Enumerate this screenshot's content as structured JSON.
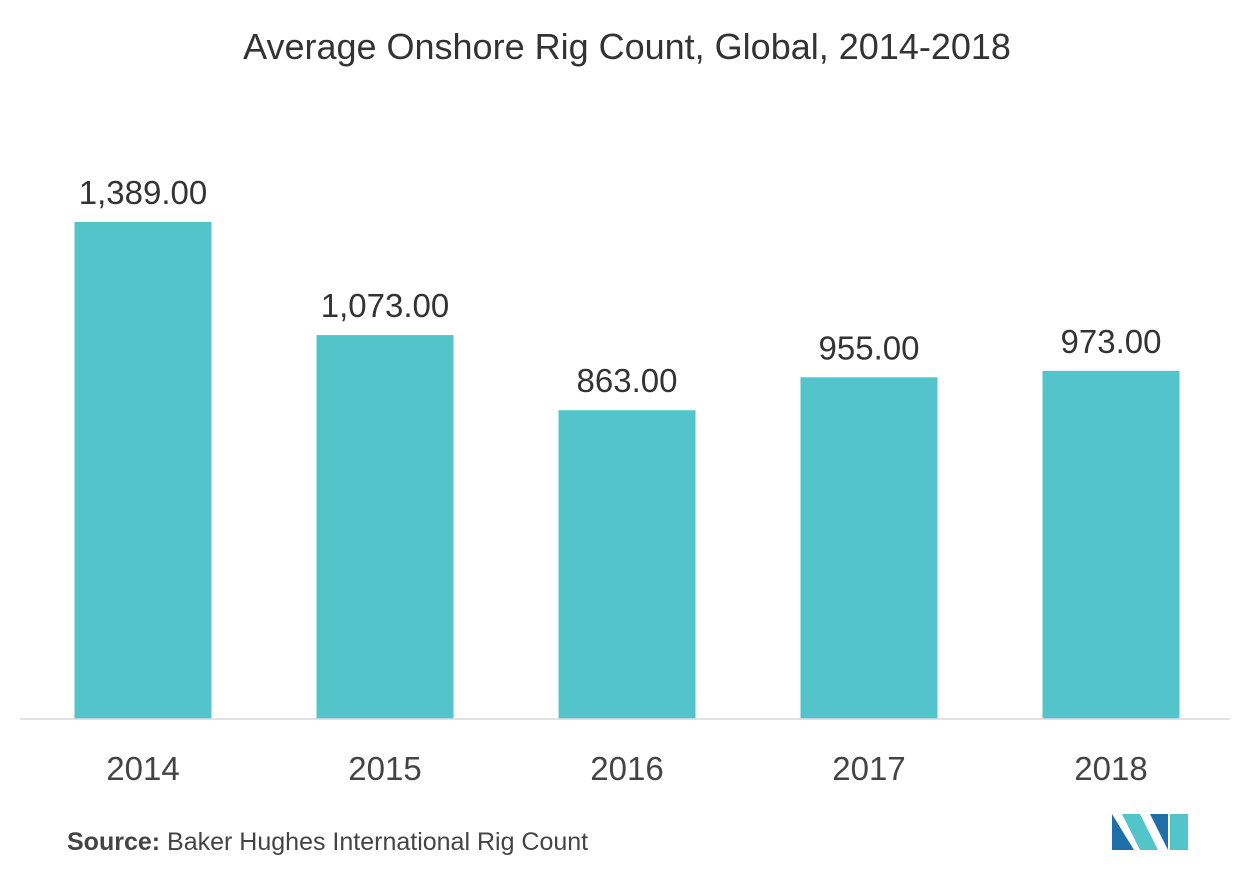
{
  "chart_data": {
    "type": "bar",
    "title": "Average Onshore Rig Count, Global, 2014-2018",
    "categories": [
      "2014",
      "2015",
      "2016",
      "2017",
      "2018"
    ],
    "values": [
      1389.0,
      1073.0,
      863.0,
      955.0,
      973.0
    ],
    "value_labels": [
      "1,389.00",
      "1,073.00",
      "863.00",
      "955.00",
      "973.00"
    ],
    "xlabel": "",
    "ylabel": "",
    "ylim": [
      0,
      1389
    ],
    "grid": false,
    "bar_color": "#52C4CA"
  },
  "source": {
    "label": "Source:",
    "text": "Baker Hughes International Rig Count"
  },
  "logo": {
    "icon": "mordor-intelligence-logo-icon",
    "colors": [
      "#1E6FA8",
      "#52C4CA"
    ]
  }
}
